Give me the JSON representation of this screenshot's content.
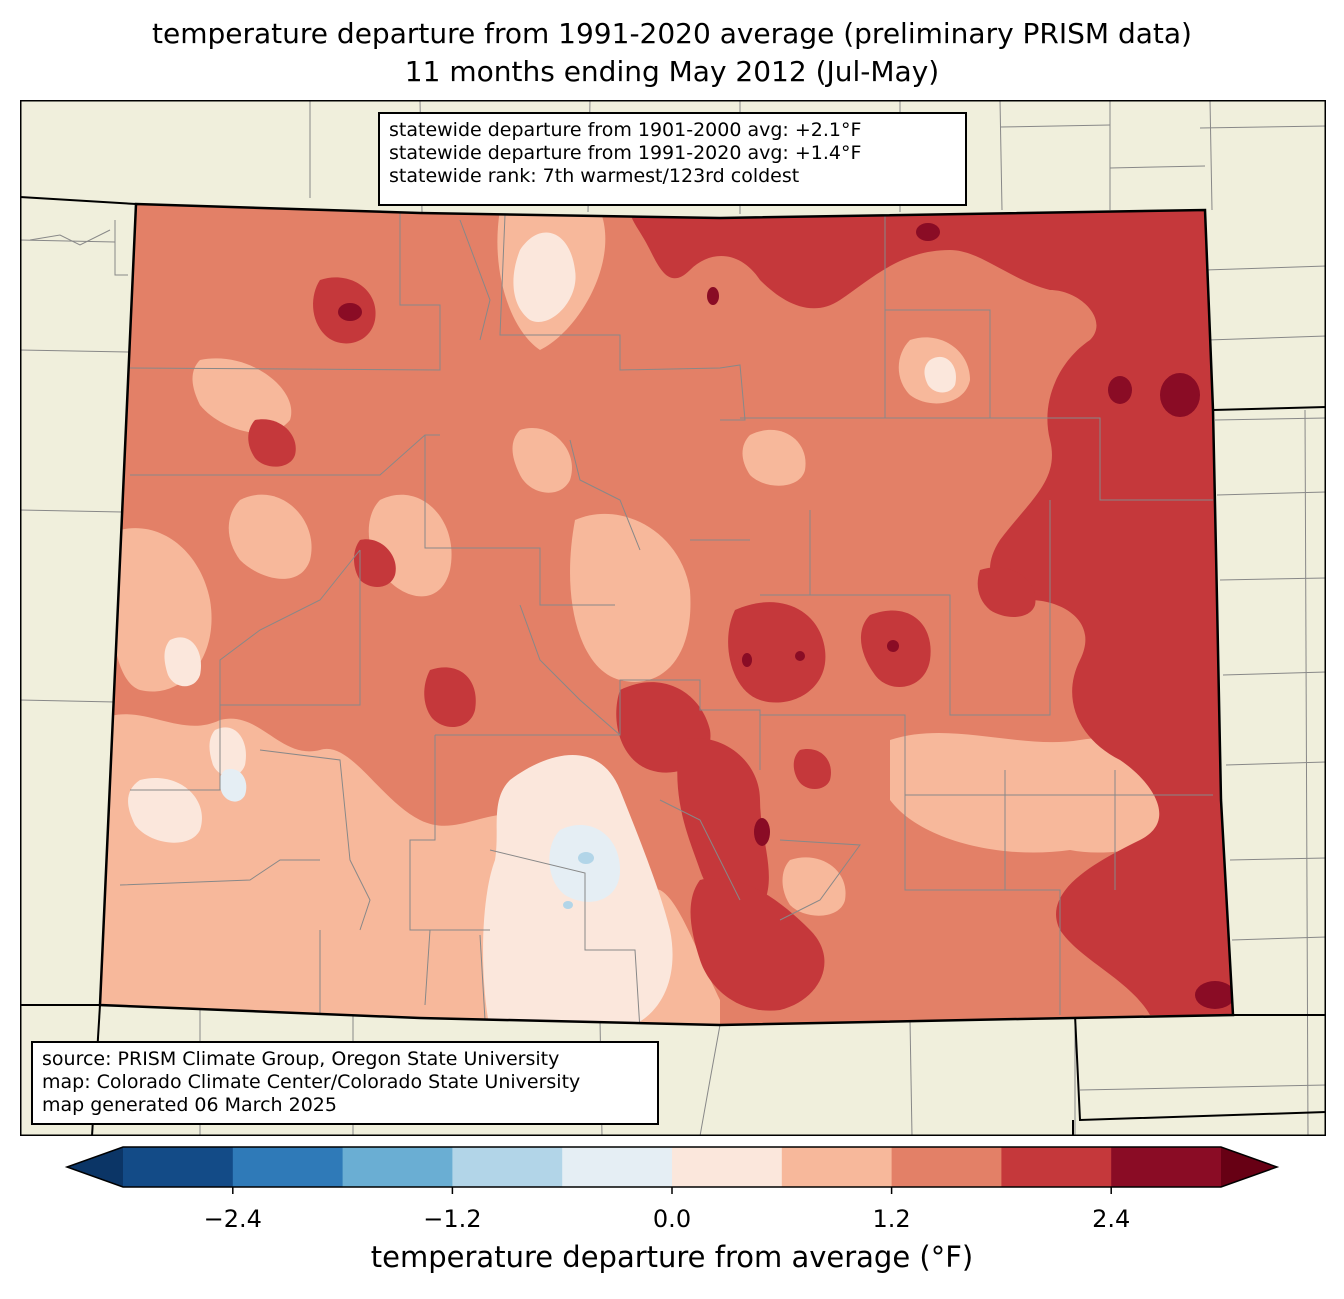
{
  "title": {
    "line1": "temperature departure from 1991-2020 average (preliminary PRISM data)",
    "line2": "11 months ending May 2012 (Jul-May)"
  },
  "stats": {
    "line1": "statewide departure from 1901-2000 avg: +2.1°F",
    "line2": "statewide departure from 1991-2020 avg: +1.4°F",
    "line3": "statewide rank: 7th warmest/123rd coldest"
  },
  "source": {
    "line1": "source: PRISM Climate Group, Oregon State University",
    "line2": "map: Colorado Climate Center/Colorado State University",
    "line3": "map generated 06 March 2025"
  },
  "colorbar": {
    "label": "temperature departure from average (°F)",
    "tick_labels": [
      "−2.4",
      "−1.2",
      "0.0",
      "1.2",
      "2.4"
    ],
    "tick_values": [
      -2.4,
      -1.2,
      0.0,
      1.2,
      2.4
    ],
    "range": [
      -3.0,
      3.0
    ],
    "bins": [
      {
        "from": -3.0,
        "to": -2.4,
        "color": "#134b87"
      },
      {
        "from": -2.4,
        "to": -1.8,
        "color": "#2f7ab8"
      },
      {
        "from": -1.8,
        "to": -1.2,
        "color": "#6aaed3"
      },
      {
        "from": -1.2,
        "to": -0.6,
        "color": "#b2d5e8"
      },
      {
        "from": -0.6,
        "to": 0.0,
        "color": "#e5eef4"
      },
      {
        "from": 0.0,
        "to": 0.6,
        "color": "#fbe7dc"
      },
      {
        "from": 0.6,
        "to": 1.2,
        "color": "#f7b89b"
      },
      {
        "from": 1.2,
        "to": 1.8,
        "color": "#e38067"
      },
      {
        "from": 1.8,
        "to": 2.4,
        "color": "#c5383b"
      },
      {
        "from": 2.4,
        "to": 3.0,
        "color": "#8a0c25"
      }
    ],
    "under_color": "#0b3566",
    "over_color": "#670014"
  },
  "map": {
    "land_color": "#f0efdc",
    "county_line_color": "#888888"
  }
}
